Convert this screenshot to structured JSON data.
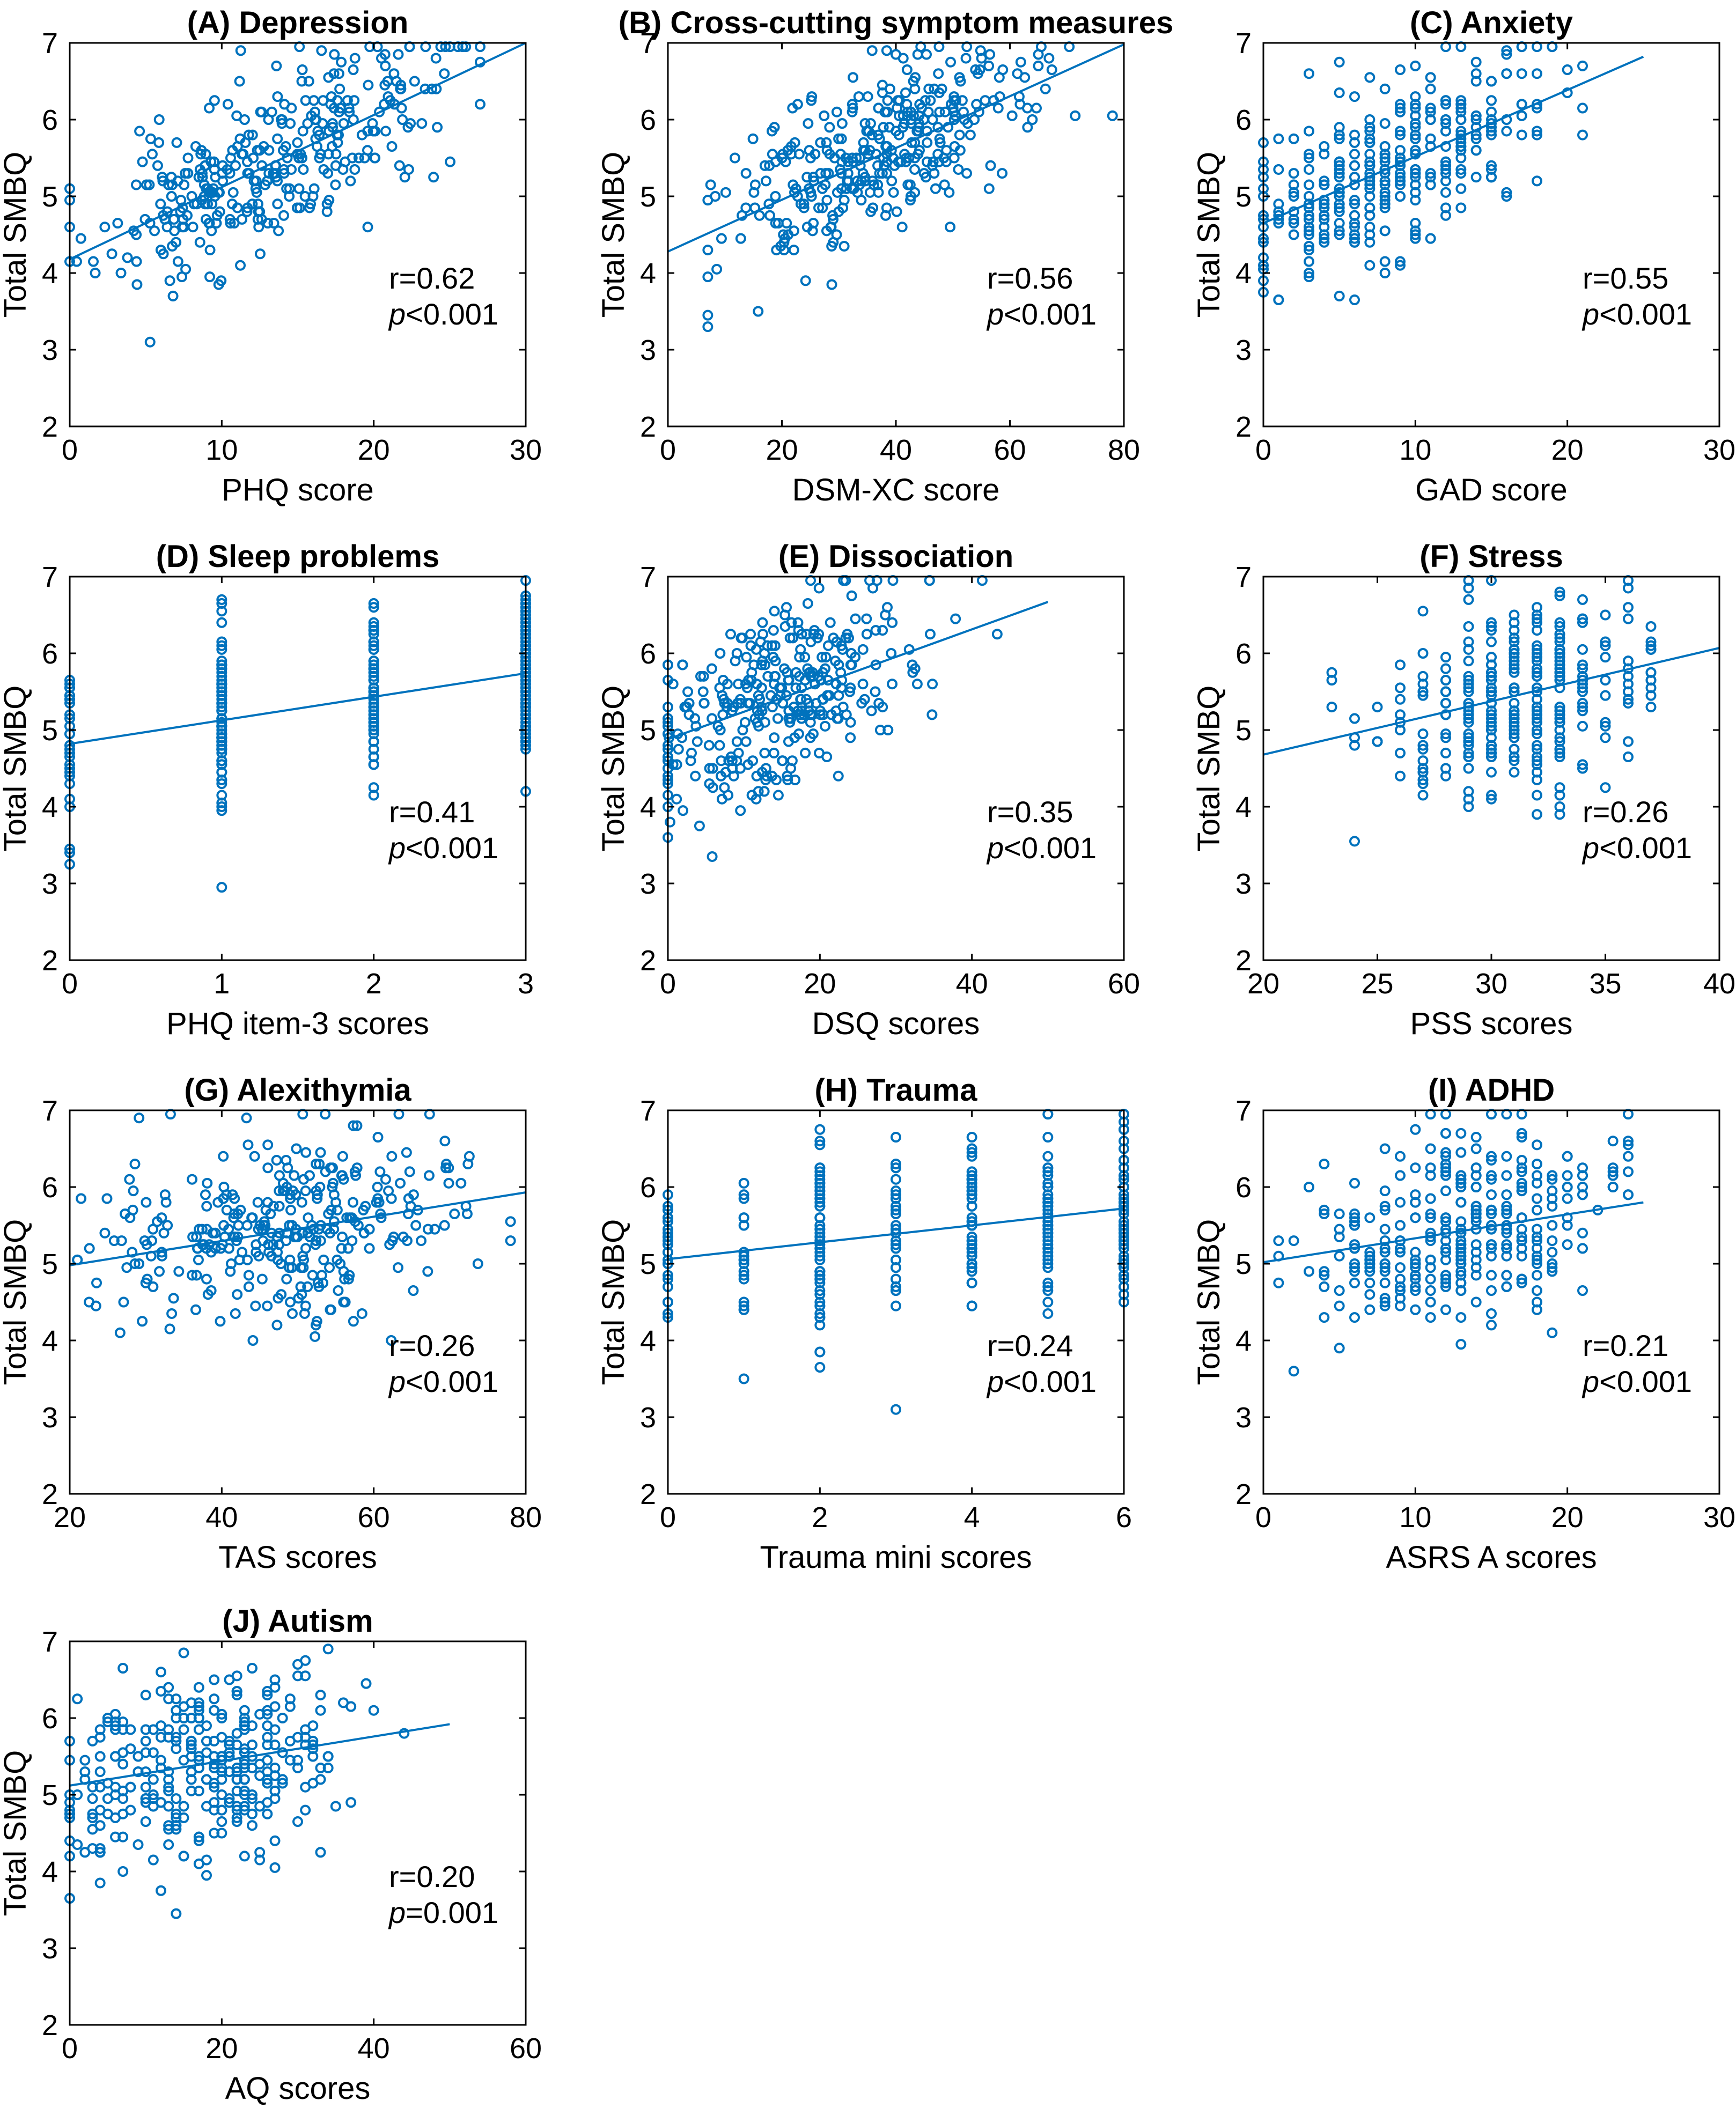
{
  "figure": {
    "accent": "#0072BD",
    "line_color": "#0072BD",
    "axis_color": "#000000",
    "background": "#ffffff"
  },
  "chart_data": [
    {
      "type": "scatter",
      "panel": "A",
      "title": "(A) Depression",
      "xlabel": "PHQ score",
      "ylabel": "Total SMBQ",
      "xlim": [
        0,
        30
      ],
      "ylim": [
        2,
        7
      ],
      "xticks": [
        0,
        10,
        20,
        30
      ],
      "yticks": [
        2,
        3,
        4,
        5,
        6,
        7
      ],
      "stat_r": "r=0.62",
      "stat_p_letter": "p",
      "stat_p_rest": "<0.001",
      "fit": {
        "x": [
          0,
          30
        ],
        "y": [
          4.18,
          7.0
        ]
      },
      "points": {
        "n": 340,
        "seed": 11,
        "mode": "continuous",
        "xmean": 13,
        "xsd": 5.5,
        "xmin": 0,
        "xmax": 27,
        "a": 4.18,
        "b": 0.094,
        "noise": 0.55
      }
    },
    {
      "type": "scatter",
      "panel": "B",
      "title": "(B) Cross-cutting symptom measures",
      "xlabel": "DSM-XC score",
      "ylabel": "Total SMBQ",
      "xlim": [
        0,
        80
      ],
      "ylim": [
        2,
        7
      ],
      "xticks": [
        0,
        20,
        40,
        60,
        80
      ],
      "yticks": [
        2,
        3,
        4,
        5,
        6,
        7
      ],
      "stat_r": "r=0.56",
      "stat_p_letter": "p",
      "stat_p_rest": "<0.001",
      "fit": {
        "x": [
          0,
          80
        ],
        "y": [
          4.28,
          6.98
        ]
      },
      "points": {
        "n": 340,
        "seed": 23,
        "mode": "continuous",
        "xmean": 36,
        "xsd": 13,
        "xmin": 7,
        "xmax": 78,
        "a": 4.28,
        "b": 0.034,
        "noise": 0.55
      }
    },
    {
      "type": "scatter",
      "panel": "C",
      "title": "(C) Anxiety",
      "xlabel": "GAD score",
      "ylabel": "Total SMBQ",
      "xlim": [
        0,
        30
      ],
      "ylim": [
        2,
        7
      ],
      "xticks": [
        0,
        10,
        20,
        30
      ],
      "yticks": [
        2,
        3,
        4,
        5,
        6,
        7
      ],
      "stat_r": "r=0.55",
      "stat_p_letter": "p",
      "stat_p_rest": "<0.001",
      "fit": {
        "x": [
          0,
          25
        ],
        "y": [
          4.65,
          6.82
        ]
      },
      "points": {
        "n": 340,
        "seed": 37,
        "mode": "integer",
        "xmean": 9,
        "xsd": 5,
        "xmin": 0,
        "xmax": 21,
        "a": 4.65,
        "b": 0.087,
        "noise": 0.55
      }
    },
    {
      "type": "scatter",
      "panel": "D",
      "title": "(D) Sleep problems",
      "xlabel": "PHQ item-3 scores",
      "ylabel": "Total SMBQ",
      "xlim": [
        0,
        3
      ],
      "ylim": [
        2,
        7
      ],
      "xticks": [
        0,
        1,
        2,
        3
      ],
      "yticks": [
        2,
        3,
        4,
        5,
        6,
        7
      ],
      "stat_r": "r=0.41",
      "stat_p_letter": "p",
      "stat_p_rest": "<0.001",
      "fit": {
        "x": [
          0,
          3
        ],
        "y": [
          4.82,
          5.74
        ]
      },
      "points": {
        "n": 300,
        "seed": 41,
        "mode": "discrete",
        "levels": [
          0,
          1,
          2,
          3
        ],
        "weights": [
          0.12,
          0.3,
          0.25,
          0.33
        ],
        "a": 4.82,
        "b": 0.307,
        "noise": 0.6
      }
    },
    {
      "type": "scatter",
      "panel": "E",
      "title": "(E) Dissociation",
      "xlabel": "DSQ scores",
      "ylabel": "Total SMBQ",
      "xlim": [
        0,
        60
      ],
      "ylim": [
        2,
        7
      ],
      "xticks": [
        0,
        20,
        40,
        60
      ],
      "yticks": [
        2,
        3,
        4,
        5,
        6,
        7
      ],
      "stat_r": "r=0.35",
      "stat_p_letter": "p",
      "stat_p_rest": "<0.001",
      "fit": {
        "x": [
          0,
          50
        ],
        "y": [
          4.88,
          6.67
        ]
      },
      "points": {
        "n": 330,
        "seed": 53,
        "mode": "continuous",
        "xmean": 14,
        "xsd": 9,
        "xmin": 0,
        "xmax": 44,
        "a": 4.88,
        "b": 0.036,
        "noise": 0.6
      }
    },
    {
      "type": "scatter",
      "panel": "F",
      "title": "(F) Stress",
      "xlabel": "PSS scores",
      "ylabel": "Total SMBQ",
      "xlim": [
        20,
        40
      ],
      "ylim": [
        2,
        7
      ],
      "xticks": [
        20,
        25,
        30,
        35,
        40
      ],
      "yticks": [
        2,
        3,
        4,
        5,
        6,
        7
      ],
      "stat_r": "r=0.26",
      "stat_p_letter": "p",
      "stat_p_rest": "<0.001",
      "fit": {
        "x": [
          20,
          40
        ],
        "y": [
          4.68,
          6.07
        ]
      },
      "points": {
        "n": 330,
        "seed": 67,
        "mode": "integer",
        "xmean": 31,
        "xsd": 3,
        "xmin": 23,
        "xmax": 37,
        "a": 3.29,
        "b": 0.0695,
        "noise": 0.6
      }
    },
    {
      "type": "scatter",
      "panel": "G",
      "title": "(G) Alexithymia",
      "xlabel": "TAS scores",
      "ylabel": "Total SMBQ",
      "xlim": [
        20,
        80
      ],
      "ylim": [
        2,
        7
      ],
      "xticks": [
        20,
        40,
        60,
        80
      ],
      "yticks": [
        2,
        3,
        4,
        5,
        6,
        7
      ],
      "stat_r": "r=0.26",
      "stat_p_letter": "p",
      "stat_p_rest": "<0.001",
      "fit": {
        "x": [
          20,
          80
        ],
        "y": [
          4.98,
          5.93
        ]
      },
      "points": {
        "n": 330,
        "seed": 79,
        "mode": "continuous",
        "xmean": 48,
        "xsd": 12,
        "xmin": 21,
        "xmax": 78,
        "a": 4.66,
        "b": 0.0158,
        "noise": 0.6
      }
    },
    {
      "type": "scatter",
      "panel": "H",
      "title": "(H) Trauma",
      "xlabel": "Trauma mini scores",
      "ylabel": "Total SMBQ",
      "xlim": [
        0,
        6
      ],
      "ylim": [
        2,
        7
      ],
      "xticks": [
        0,
        2,
        4,
        6
      ],
      "yticks": [
        2,
        3,
        4,
        5,
        6,
        7
      ],
      "stat_r": "r=0.24",
      "stat_p_letter": "p",
      "stat_p_rest": "<0.001",
      "fit": {
        "x": [
          0,
          6
        ],
        "y": [
          5.06,
          5.72
        ]
      },
      "points": {
        "n": 300,
        "seed": 83,
        "mode": "discrete",
        "levels": [
          0,
          1,
          2,
          3,
          4,
          5,
          6
        ],
        "weights": [
          0.1,
          0.08,
          0.17,
          0.12,
          0.16,
          0.17,
          0.2
        ],
        "a": 5.06,
        "b": 0.11,
        "noise": 0.65
      }
    },
    {
      "type": "scatter",
      "panel": "I",
      "title": "(I) ADHD",
      "xlabel": "ASRS A scores",
      "ylabel": "Total SMBQ",
      "xlim": [
        0,
        30
      ],
      "ylim": [
        2,
        7
      ],
      "xticks": [
        0,
        10,
        20,
        30
      ],
      "yticks": [
        2,
        3,
        4,
        5,
        6,
        7
      ],
      "stat_r": "r=0.21",
      "stat_p_letter": "p",
      "stat_p_rest": "<0.001",
      "fit": {
        "x": [
          0,
          25
        ],
        "y": [
          5.02,
          5.8
        ]
      },
      "points": {
        "n": 330,
        "seed": 97,
        "mode": "integer",
        "xmean": 13,
        "xsd": 5,
        "xmin": 1,
        "xmax": 24,
        "a": 5.02,
        "b": 0.031,
        "noise": 0.65
      }
    },
    {
      "type": "scatter",
      "panel": "J",
      "title": "(J) Autism",
      "xlabel": "AQ scores",
      "ylabel": "Total SMBQ",
      "xlim": [
        0,
        60
      ],
      "ylim": [
        2,
        7
      ],
      "xticks": [
        0,
        20,
        40,
        60
      ],
      "yticks": [
        2,
        3,
        4,
        5,
        6,
        7
      ],
      "stat_r": "r=0.20",
      "stat_p_letter": "p",
      "stat_p_rest": "=0.001",
      "fit": {
        "x": [
          0,
          50
        ],
        "y": [
          5.12,
          5.92
        ]
      },
      "points": {
        "n": 330,
        "seed": 101,
        "mode": "integer",
        "xmean": 18,
        "xsd": 9,
        "xmin": 0,
        "xmax": 44,
        "a": 5.12,
        "b": 0.016,
        "noise": 0.65
      }
    }
  ]
}
